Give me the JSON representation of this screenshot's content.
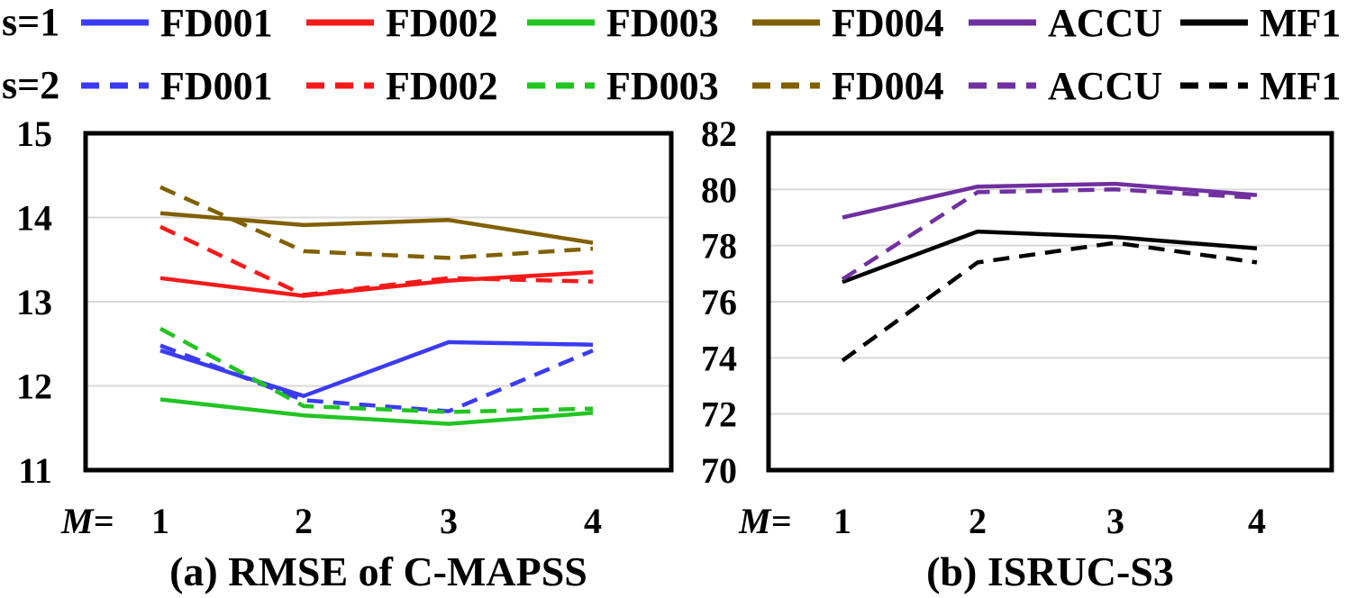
{
  "legend": {
    "rows": [
      {
        "label": "s=1",
        "dash": false
      },
      {
        "label": "s=2",
        "dash": true
      }
    ],
    "entries": [
      {
        "name": "FD001",
        "color": "#3b3bf5"
      },
      {
        "name": "FD002",
        "color": "#f51a1a"
      },
      {
        "name": "FD003",
        "color": "#22c422"
      },
      {
        "name": "FD004",
        "color": "#806000"
      },
      {
        "name": "ACCU",
        "color": "#7030a0"
      },
      {
        "name": "MF1",
        "color": "#000000"
      }
    ]
  },
  "chart_data": [
    {
      "type": "line",
      "title": "(a) RMSE of C-MAPSS",
      "xlabel": "M=",
      "categories": [
        "1",
        "2",
        "3",
        "4"
      ],
      "ylim": [
        11,
        15
      ],
      "yticks": [
        11,
        12,
        13,
        14,
        15
      ],
      "grid": true,
      "series": [
        {
          "name": "FD001",
          "s": 1,
          "color": "#3b3bf5",
          "dashed": false,
          "values": [
            12.42,
            11.88,
            12.52,
            12.49
          ]
        },
        {
          "name": "FD002",
          "s": 1,
          "color": "#f51a1a",
          "dashed": false,
          "values": [
            13.28,
            13.07,
            13.25,
            13.35
          ]
        },
        {
          "name": "FD003",
          "s": 1,
          "color": "#22c422",
          "dashed": false,
          "values": [
            11.84,
            11.65,
            11.55,
            11.68
          ]
        },
        {
          "name": "FD004",
          "s": 1,
          "color": "#806000",
          "dashed": false,
          "values": [
            14.05,
            13.91,
            13.97,
            13.7
          ]
        },
        {
          "name": "FD001",
          "s": 2,
          "color": "#3b3bf5",
          "dashed": true,
          "values": [
            12.48,
            11.83,
            11.7,
            12.42
          ]
        },
        {
          "name": "FD002",
          "s": 2,
          "color": "#f51a1a",
          "dashed": true,
          "values": [
            13.89,
            13.08,
            13.28,
            13.24
          ]
        },
        {
          "name": "FD003",
          "s": 2,
          "color": "#22c422",
          "dashed": true,
          "values": [
            12.68,
            11.76,
            11.69,
            11.73
          ]
        },
        {
          "name": "FD004",
          "s": 2,
          "color": "#806000",
          "dashed": true,
          "values": [
            14.36,
            13.6,
            13.52,
            13.63
          ]
        }
      ]
    },
    {
      "type": "line",
      "title": "(b) ISRUC-S3",
      "xlabel": "M=",
      "categories": [
        "1",
        "2",
        "3",
        "4"
      ],
      "ylim": [
        70,
        82
      ],
      "yticks": [
        70,
        72,
        74,
        76,
        78,
        80,
        82
      ],
      "grid": true,
      "series": [
        {
          "name": "ACCU",
          "s": 1,
          "color": "#7030a0",
          "dashed": false,
          "values": [
            79.0,
            80.1,
            80.2,
            79.8
          ]
        },
        {
          "name": "MF1",
          "s": 1,
          "color": "#000000",
          "dashed": false,
          "values": [
            76.7,
            78.5,
            78.3,
            77.9
          ]
        },
        {
          "name": "ACCU",
          "s": 2,
          "color": "#7030a0",
          "dashed": true,
          "values": [
            76.8,
            79.9,
            80.0,
            79.7
          ]
        },
        {
          "name": "MF1",
          "s": 2,
          "color": "#000000",
          "dashed": true,
          "values": [
            73.9,
            77.4,
            78.1,
            77.4
          ]
        }
      ]
    }
  ]
}
